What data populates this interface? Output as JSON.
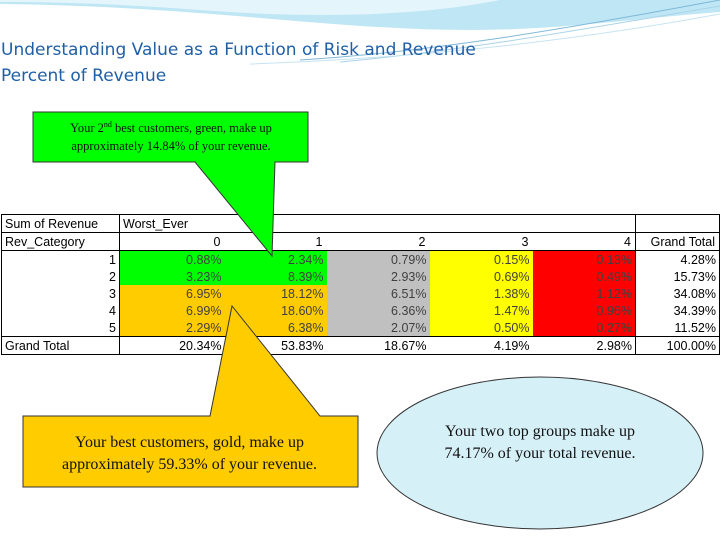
{
  "slide": {
    "title_line1": "Understanding Value as a Function of Risk and Revenue",
    "title_line2": "Percent of Revenue"
  },
  "callouts": {
    "green_note_pre": "Your 2",
    "green_note_sup": "nd",
    "green_note_post": " best customers, green, make up approximately 14.84% of your revenue.",
    "gold_note": "Your best customers, gold, make up approximately 59.33% of your revenue.",
    "blue_note": "Your two top groups make up 74.17% of your total revenue."
  },
  "table": {
    "header1": {
      "corner": "Sum of Revenue",
      "pivot_field": "Worst_Ever"
    },
    "header2": {
      "row_field": "Rev_Category",
      "columns": [
        "0",
        "1",
        "2",
        "3",
        "4",
        "Grand Total"
      ]
    },
    "rows": [
      {
        "label": "1",
        "values": [
          "0.88%",
          "2.34%",
          "0.79%",
          "0.15%",
          "0.13%",
          "4.28%"
        ]
      },
      {
        "label": "2",
        "values": [
          "3.23%",
          "8.39%",
          "2.93%",
          "0.69%",
          "0.49%",
          "15.73%"
        ]
      },
      {
        "label": "3",
        "values": [
          "6.95%",
          "18.12%",
          "6.51%",
          "1.38%",
          "1.12%",
          "34.08%"
        ]
      },
      {
        "label": "4",
        "values": [
          "6.99%",
          "18.60%",
          "6.36%",
          "1.47%",
          "0.96%",
          "34.39%"
        ]
      },
      {
        "label": "5",
        "values": [
          "2.29%",
          "6.38%",
          "2.07%",
          "0.50%",
          "0.27%",
          "11.52%"
        ]
      }
    ],
    "grand_total": {
      "label": "Grand Total",
      "values": [
        "20.34%",
        "53.83%",
        "18.67%",
        "4.19%",
        "2.98%",
        "100.00%"
      ]
    }
  },
  "colors": {
    "green": "#00ff00",
    "gold": "#ffcc00",
    "gray": "#c0c0c0",
    "yellow": "#ffff00",
    "red": "#ff0000",
    "light_blue": "#d6f0f8",
    "title_blue": "#1f5fa6"
  }
}
